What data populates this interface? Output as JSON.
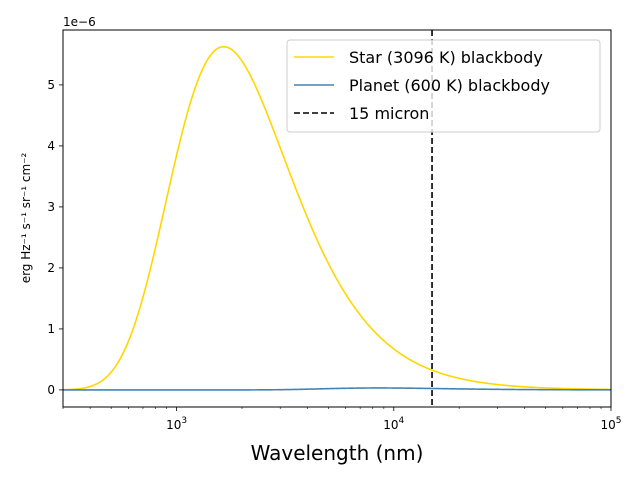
{
  "chart_data": {
    "type": "line",
    "title": "",
    "xlabel": "Wavelength (nm)",
    "ylabel": "erg Hz⁻¹ s⁻¹ sr⁻¹ cm⁻²",
    "x_scale": "log",
    "xlim": [
      300,
      100000
    ],
    "ylim": [
      -2.8e-07,
      5.9e-06
    ],
    "y_offset_label": "1e−6",
    "x_ticks": [
      {
        "value": 1000,
        "base": "10",
        "exp": "3"
      },
      {
        "value": 10000,
        "base": "10",
        "exp": "4"
      },
      {
        "value": 100000,
        "base": "10",
        "exp": "5"
      }
    ],
    "y_ticks": [
      {
        "value": 0,
        "label": "0"
      },
      {
        "value": 1e-06,
        "label": "1"
      },
      {
        "value": 2e-06,
        "label": "2"
      },
      {
        "value": 3e-06,
        "label": "3"
      },
      {
        "value": 4e-06,
        "label": "4"
      },
      {
        "value": 5e-06,
        "label": "5"
      }
    ],
    "series": [
      {
        "name": "Star (3096 K) blackbody",
        "kind": "blackbody",
        "temperature_K": 3096,
        "scale": 5.627e-06,
        "color": "#FFD700",
        "style": "solid"
      },
      {
        "name": "Planet (600 K) blackbody",
        "kind": "blackbody",
        "temperature_K": 600,
        "scale": 3.2e-08,
        "color": "#4682B4",
        "style": "solid"
      }
    ],
    "vlines": [
      {
        "name": "15 micron",
        "x": 15000,
        "color": "#000000",
        "style": "dashed"
      }
    ],
    "legend_position": "top-right",
    "grid": false
  }
}
